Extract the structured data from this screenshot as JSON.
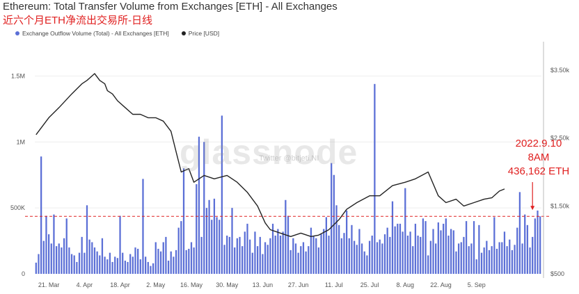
{
  "header": {
    "title": "Ethereum: Total Transfer Volume from Exchanges [ETH] - All Exchanges",
    "subtitle": "近六个月ETH净流出交易所-日线"
  },
  "legend": {
    "items": [
      {
        "label": "Exchange Outflow Volume (Total) - All Exchanges [ETH]",
        "color": "#5b6fd6"
      },
      {
        "label": "Price [USD]",
        "color": "#222222"
      }
    ]
  },
  "watermark": {
    "text": "glassnode",
    "sub": "Twitter @bitjeti.NI"
  },
  "annotation": {
    "lines": [
      "2022.9.10",
      "8AM",
      "436,162 ETH"
    ],
    "color": "#e02020"
  },
  "colors": {
    "bars": "#5b6fd6",
    "price": "#222222",
    "refline": "#e02020",
    "annotation": "#e02020"
  },
  "chart_data": {
    "type": "bar",
    "x_tick_labels": [
      "21. Mar",
      "4. Apr",
      "18. Apr",
      "2. May",
      "16. May",
      "30. May",
      "13. Jun",
      "27. Jun",
      "11. Jul",
      "25. Jul",
      "8. Aug",
      "22. Aug",
      "5. Sep"
    ],
    "x_tick_day_index": [
      5,
      19,
      33,
      47,
      61,
      75,
      89,
      103,
      117,
      131,
      145,
      159,
      173
    ],
    "y_left": {
      "ticks": [
        "0",
        "500K",
        "1M",
        "1.5M"
      ],
      "tick_values": [
        0,
        500000,
        1000000,
        1500000
      ],
      "range": [
        0,
        1750000
      ]
    },
    "y_right": {
      "ticks": [
        "$500",
        "$1.50k",
        "$2.50k",
        "$3.50k"
      ],
      "tick_values": [
        500,
        1500,
        2500,
        3500
      ],
      "range": [
        500,
        3900
      ]
    },
    "reference_line": {
      "value": 436162,
      "style": "dashed"
    },
    "series": [
      {
        "name": "Exchange Outflow Volume (Total) - All Exchanges [ETH]",
        "kind": "bar",
        "axis": "left",
        "values": [
          85000,
          150000,
          890000,
          250000,
          440000,
          300000,
          230000,
          450000,
          210000,
          230000,
          200000,
          270000,
          420000,
          200000,
          150000,
          140000,
          90000,
          160000,
          280000,
          160000,
          520000,
          260000,
          240000,
          200000,
          170000,
          140000,
          270000,
          130000,
          110000,
          160000,
          90000,
          130000,
          120000,
          440000,
          160000,
          100000,
          90000,
          150000,
          130000,
          200000,
          190000,
          110000,
          720000,
          130000,
          90000,
          60000,
          80000,
          240000,
          190000,
          170000,
          240000,
          280000,
          100000,
          170000,
          130000,
          180000,
          350000,
          400000,
          800000,
          180000,
          190000,
          240000,
          200000,
          680000,
          1040000,
          280000,
          1000000,
          500000,
          560000,
          410000,
          570000,
          430000,
          410000,
          1200000,
          220000,
          290000,
          280000,
          500000,
          200000,
          270000,
          280000,
          210000,
          320000,
          380000,
          260000,
          160000,
          320000,
          210000,
          280000,
          150000,
          240000,
          220000,
          270000,
          380000,
          290000,
          340000,
          290000,
          320000,
          560000,
          440000,
          180000,
          270000,
          230000,
          160000,
          210000,
          240000,
          170000,
          210000,
          350000,
          290000,
          270000,
          200000,
          300000,
          340000,
          430000,
          290000,
          840000,
          750000,
          520000,
          370000,
          270000,
          310000,
          480000,
          270000,
          370000,
          250000,
          220000,
          340000,
          230000,
          170000,
          140000,
          250000,
          290000,
          1440000,
          240000,
          260000,
          230000,
          300000,
          350000,
          280000,
          550000,
          360000,
          380000,
          380000,
          320000,
          650000,
          290000,
          320000,
          210000,
          380000,
          290000,
          280000,
          420000,
          400000,
          140000,
          250000,
          340000,
          230000,
          390000,
          330000,
          380000,
          420000,
          290000,
          340000,
          330000,
          170000,
          230000,
          240000,
          280000,
          400000,
          210000,
          230000,
          400000,
          110000,
          370000,
          160000,
          200000,
          250000,
          180000,
          210000,
          430000,
          190000,
          240000,
          240000,
          320000,
          210000,
          260000,
          180000,
          220000,
          350000,
          620000,
          230000,
          450000,
          370000,
          200000,
          280000,
          420000,
          480000,
          436162
        ]
      },
      {
        "name": "Price [USD]",
        "kind": "line",
        "axis": "right",
        "x": [
          0,
          5,
          9,
          14,
          18,
          20,
          23,
          25,
          27,
          28,
          30,
          32,
          35,
          38,
          41,
          44,
          47,
          50,
          53,
          55,
          57,
          60,
          62,
          66,
          70,
          75,
          79,
          83,
          87,
          90,
          92,
          96,
          100,
          104,
          108,
          111,
          115,
          119,
          122,
          126,
          131,
          135,
          140,
          145,
          149,
          154,
          158,
          161,
          165,
          168,
          172,
          176,
          179,
          182,
          184
        ],
        "values": [
          2550,
          2800,
          2950,
          3150,
          3300,
          3350,
          3450,
          3350,
          3300,
          3200,
          3150,
          3050,
          2950,
          2850,
          2850,
          2800,
          2800,
          2750,
          2600,
          2300,
          2000,
          2050,
          1850,
          1950,
          1900,
          1950,
          1850,
          1700,
          1500,
          1250,
          1150,
          1100,
          1050,
          1100,
          1050,
          1070,
          1150,
          1300,
          1450,
          1550,
          1650,
          1650,
          1800,
          1850,
          1900,
          2000,
          1650,
          1550,
          1600,
          1500,
          1550,
          1600,
          1620,
          1720,
          1750
        ]
      }
    ],
    "grid": true,
    "legend_position": "top-left"
  }
}
